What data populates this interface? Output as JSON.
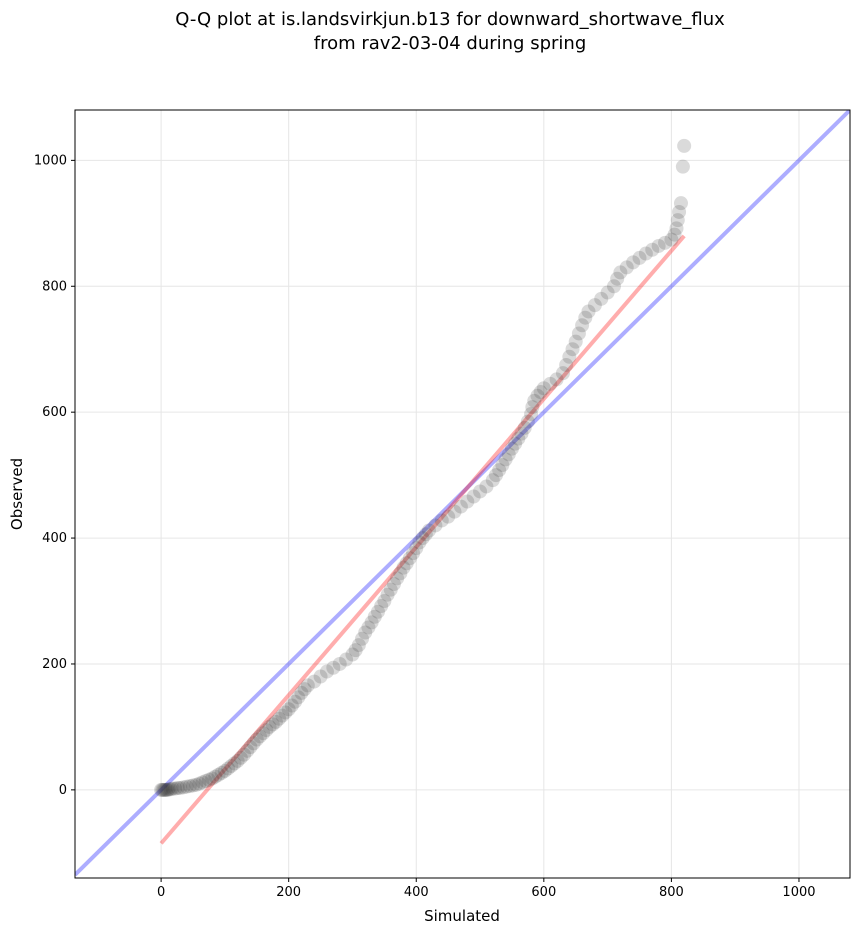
{
  "chart_data": {
    "type": "scatter",
    "title_lines": [
      "Q-Q plot at is.landsvirkjun.b13 for downward_shortwave_flux",
      "from rav2-03-04 during spring"
    ],
    "xlabel": "Simulated",
    "ylabel": "Observed",
    "xlim": [
      -135,
      1080
    ],
    "ylim": [
      -140,
      1080
    ],
    "xticks": [
      0,
      200,
      400,
      600,
      800,
      1000
    ],
    "yticks": [
      0,
      200,
      400,
      600,
      800,
      1000
    ],
    "grid": true,
    "point_color": "#333333",
    "reference_line": {
      "color": "#0000ff",
      "points": [
        [
          -135,
          -135
        ],
        [
          1080,
          1080
        ]
      ]
    },
    "fit_line": {
      "color": "#ff0000",
      "points": [
        [
          0,
          -85
        ],
        [
          820,
          880
        ]
      ]
    },
    "points": [
      [
        0,
        0
      ],
      [
        2,
        0
      ],
      [
        4,
        0
      ],
      [
        6,
        0
      ],
      [
        8,
        0
      ],
      [
        10,
        0
      ],
      [
        12,
        1
      ],
      [
        15,
        1
      ],
      [
        18,
        2
      ],
      [
        22,
        2
      ],
      [
        26,
        3
      ],
      [
        30,
        3
      ],
      [
        35,
        4
      ],
      [
        40,
        5
      ],
      [
        45,
        6
      ],
      [
        50,
        7
      ],
      [
        55,
        8
      ],
      [
        60,
        10
      ],
      [
        65,
        12
      ],
      [
        70,
        14
      ],
      [
        75,
        16
      ],
      [
        80,
        18
      ],
      [
        85,
        21
      ],
      [
        90,
        24
      ],
      [
        95,
        27
      ],
      [
        100,
        30
      ],
      [
        105,
        34
      ],
      [
        110,
        38
      ],
      [
        115,
        42
      ],
      [
        120,
        46
      ],
      [
        125,
        51
      ],
      [
        130,
        56
      ],
      [
        135,
        62
      ],
      [
        140,
        68
      ],
      [
        145,
        74
      ],
      [
        150,
        80
      ],
      [
        155,
        85
      ],
      [
        160,
        90
      ],
      [
        165,
        95
      ],
      [
        170,
        100
      ],
      [
        175,
        104
      ],
      [
        180,
        108
      ],
      [
        185,
        113
      ],
      [
        190,
        118
      ],
      [
        195,
        123
      ],
      [
        200,
        128
      ],
      [
        205,
        134
      ],
      [
        210,
        140
      ],
      [
        215,
        147
      ],
      [
        220,
        154
      ],
      [
        225,
        160
      ],
      [
        230,
        166
      ],
      [
        240,
        172
      ],
      [
        250,
        180
      ],
      [
        260,
        188
      ],
      [
        270,
        194
      ],
      [
        280,
        200
      ],
      [
        290,
        207
      ],
      [
        300,
        215
      ],
      [
        305,
        222
      ],
      [
        310,
        230
      ],
      [
        315,
        240
      ],
      [
        320,
        250
      ],
      [
        325,
        258
      ],
      [
        330,
        266
      ],
      [
        335,
        275
      ],
      [
        340,
        283
      ],
      [
        345,
        292
      ],
      [
        350,
        300
      ],
      [
        355,
        310
      ],
      [
        360,
        318
      ],
      [
        365,
        327
      ],
      [
        370,
        336
      ],
      [
        375,
        344
      ],
      [
        380,
        353
      ],
      [
        385,
        360
      ],
      [
        390,
        368
      ],
      [
        395,
        376
      ],
      [
        400,
        384
      ],
      [
        405,
        393
      ],
      [
        410,
        400
      ],
      [
        415,
        406
      ],
      [
        420,
        412
      ],
      [
        430,
        420
      ],
      [
        440,
        428
      ],
      [
        450,
        434
      ],
      [
        460,
        442
      ],
      [
        470,
        450
      ],
      [
        480,
        458
      ],
      [
        490,
        466
      ],
      [
        500,
        474
      ],
      [
        510,
        482
      ],
      [
        520,
        492
      ],
      [
        525,
        500
      ],
      [
        530,
        508
      ],
      [
        535,
        516
      ],
      [
        540,
        525
      ],
      [
        545,
        533
      ],
      [
        550,
        542
      ],
      [
        555,
        550
      ],
      [
        560,
        558
      ],
      [
        565,
        566
      ],
      [
        570,
        575
      ],
      [
        575,
        585
      ],
      [
        580,
        597
      ],
      [
        582,
        608
      ],
      [
        585,
        618
      ],
      [
        590,
        626
      ],
      [
        595,
        632
      ],
      [
        600,
        638
      ],
      [
        610,
        645
      ],
      [
        620,
        652
      ],
      [
        630,
        662
      ],
      [
        635,
        675
      ],
      [
        640,
        688
      ],
      [
        645,
        700
      ],
      [
        650,
        712
      ],
      [
        655,
        725
      ],
      [
        660,
        738
      ],
      [
        665,
        750
      ],
      [
        670,
        760
      ],
      [
        680,
        770
      ],
      [
        690,
        780
      ],
      [
        700,
        790
      ],
      [
        710,
        800
      ],
      [
        715,
        812
      ],
      [
        720,
        822
      ],
      [
        730,
        830
      ],
      [
        740,
        838
      ],
      [
        750,
        845
      ],
      [
        760,
        852
      ],
      [
        770,
        858
      ],
      [
        780,
        864
      ],
      [
        790,
        869
      ],
      [
        800,
        874
      ],
      [
        805,
        882
      ],
      [
        808,
        892
      ],
      [
        810,
        905
      ],
      [
        812,
        918
      ],
      [
        815,
        932
      ],
      [
        818,
        990
      ],
      [
        820,
        1023
      ]
    ]
  }
}
